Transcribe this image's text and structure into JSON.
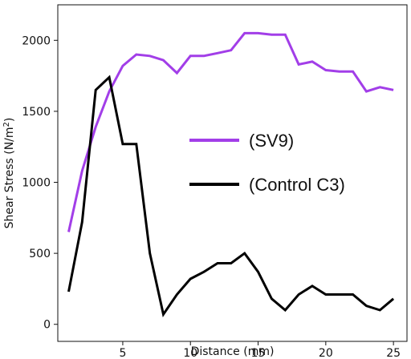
{
  "chart_data": {
    "type": "line",
    "title": "",
    "xlabel": "Distance (mm)",
    "ylabel_main": "Shear Stress (N/m",
    "ylabel_sup": "2",
    "ylabel_end": ")",
    "xlim": [
      0.2,
      26
    ],
    "ylim": [
      -120,
      2250
    ],
    "xticks": [
      5,
      10,
      15,
      20,
      25
    ],
    "yticks": [
      0,
      500,
      1000,
      1500,
      2000
    ],
    "grid": false,
    "legend_position": "center-right",
    "x": [
      1,
      2,
      3,
      4,
      5,
      6,
      7,
      8,
      9,
      10,
      11,
      12,
      13,
      14,
      15,
      16,
      17,
      18,
      19,
      20,
      21,
      22,
      23,
      24,
      25
    ],
    "series": [
      {
        "name": "(SV9)",
        "color": "#a23ee8",
        "values": [
          650,
          1080,
          1390,
          1640,
          1820,
          1900,
          1890,
          1860,
          1770,
          1890,
          1890,
          1910,
          1930,
          2050,
          2050,
          2040,
          2040,
          1830,
          1850,
          1790,
          1780,
          1780,
          1640,
          1670,
          1650
        ]
      },
      {
        "name": "(Control C3)",
        "color": "#000000",
        "values": [
          230,
          720,
          1650,
          1740,
          1270,
          1270,
          500,
          70,
          210,
          320,
          370,
          430,
          430,
          500,
          370,
          180,
          100,
          210,
          270,
          210,
          210,
          210,
          130,
          100,
          180
        ]
      }
    ]
  }
}
